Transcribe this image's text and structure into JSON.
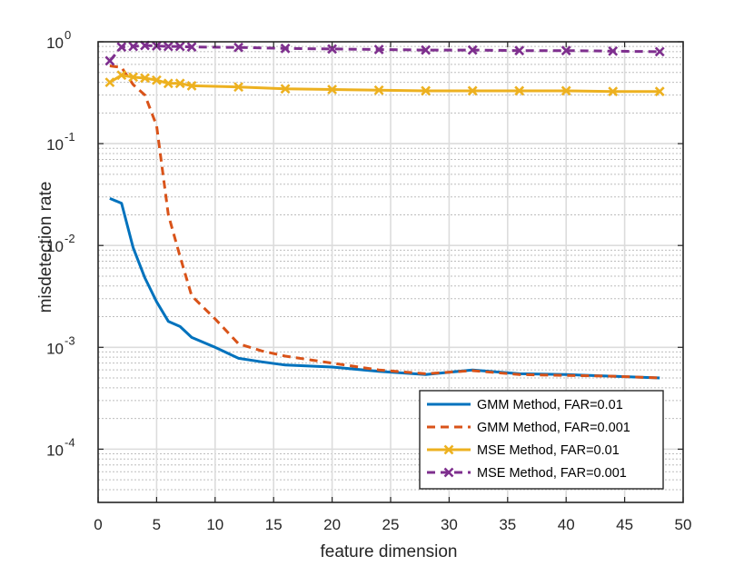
{
  "chart_data": {
    "type": "line",
    "title": "",
    "xlabel": "feature dimension",
    "ylabel": "misdetection rate",
    "xlim": [
      0,
      50
    ],
    "ylim": [
      3e-05,
      1
    ],
    "yscale": "log",
    "grid": true,
    "minor_grid": true,
    "legend_position": "bottom-right",
    "x_ticks": [
      0,
      5,
      10,
      15,
      20,
      25,
      30,
      35,
      40,
      45,
      50
    ],
    "x_tick_labels": [
      "0",
      "5",
      "10",
      "15",
      "20",
      "25",
      "30",
      "35",
      "40",
      "45",
      "50"
    ],
    "y_ticks": [
      {
        "value": 0.0001,
        "base": "10",
        "exp": "-4"
      },
      {
        "value": 0.001,
        "base": "10",
        "exp": "-3"
      },
      {
        "value": 0.01,
        "base": "10",
        "exp": "-2"
      },
      {
        "value": 0.1,
        "base": "10",
        "exp": "-1"
      },
      {
        "value": 1,
        "base": "10",
        "exp": "0"
      }
    ],
    "series": [
      {
        "name": "GMM Method, FAR=0.01",
        "color": "#0072BD",
        "style": "solid",
        "marker": "none",
        "x": [
          1,
          2,
          3,
          4,
          5,
          6,
          7,
          8,
          10,
          12,
          14,
          16,
          20,
          24,
          28,
          32,
          36,
          40,
          44,
          48
        ],
        "y": [
          0.029,
          0.026,
          0.0095,
          0.0048,
          0.0028,
          0.0018,
          0.0016,
          0.00125,
          0.001,
          0.00078,
          0.00072,
          0.00067,
          0.00064,
          0.00058,
          0.00054,
          0.0006,
          0.00055,
          0.00054,
          0.00052,
          0.0005
        ]
      },
      {
        "name": "GMM Method, FAR=0.001",
        "color": "#D95319",
        "style": "dashed",
        "marker": "none",
        "x": [
          1,
          2,
          3,
          4,
          5,
          6,
          7,
          8,
          10,
          12,
          14,
          16,
          20,
          24,
          28,
          32,
          36,
          40,
          44,
          48
        ],
        "y": [
          0.58,
          0.56,
          0.38,
          0.3,
          0.15,
          0.02,
          0.0078,
          0.0032,
          0.0019,
          0.00108,
          0.00092,
          0.00082,
          0.0007,
          0.0006,
          0.00055,
          0.00059,
          0.00054,
          0.00053,
          0.00052,
          0.0005
        ]
      },
      {
        "name": "MSE Method, FAR=0.01",
        "color": "#EDB120",
        "style": "solid",
        "marker": "x",
        "x": [
          1,
          2,
          3,
          4,
          5,
          6,
          7,
          8,
          12,
          16,
          20,
          24,
          28,
          32,
          36,
          40,
          44,
          48
        ],
        "y": [
          0.4,
          0.47,
          0.45,
          0.44,
          0.42,
          0.39,
          0.39,
          0.37,
          0.36,
          0.345,
          0.34,
          0.335,
          0.33,
          0.33,
          0.33,
          0.33,
          0.325,
          0.325
        ]
      },
      {
        "name": "MSE Method, FAR=0.001",
        "color": "#7E2F8E",
        "style": "dashed",
        "marker": "x",
        "x": [
          1,
          2,
          3,
          4,
          5,
          6,
          7,
          8,
          12,
          16,
          20,
          24,
          28,
          32,
          36,
          40,
          44,
          48
        ],
        "y": [
          0.65,
          0.89,
          0.9,
          0.92,
          0.91,
          0.9,
          0.9,
          0.89,
          0.88,
          0.86,
          0.85,
          0.84,
          0.83,
          0.83,
          0.82,
          0.82,
          0.81,
          0.8
        ]
      }
    ]
  }
}
